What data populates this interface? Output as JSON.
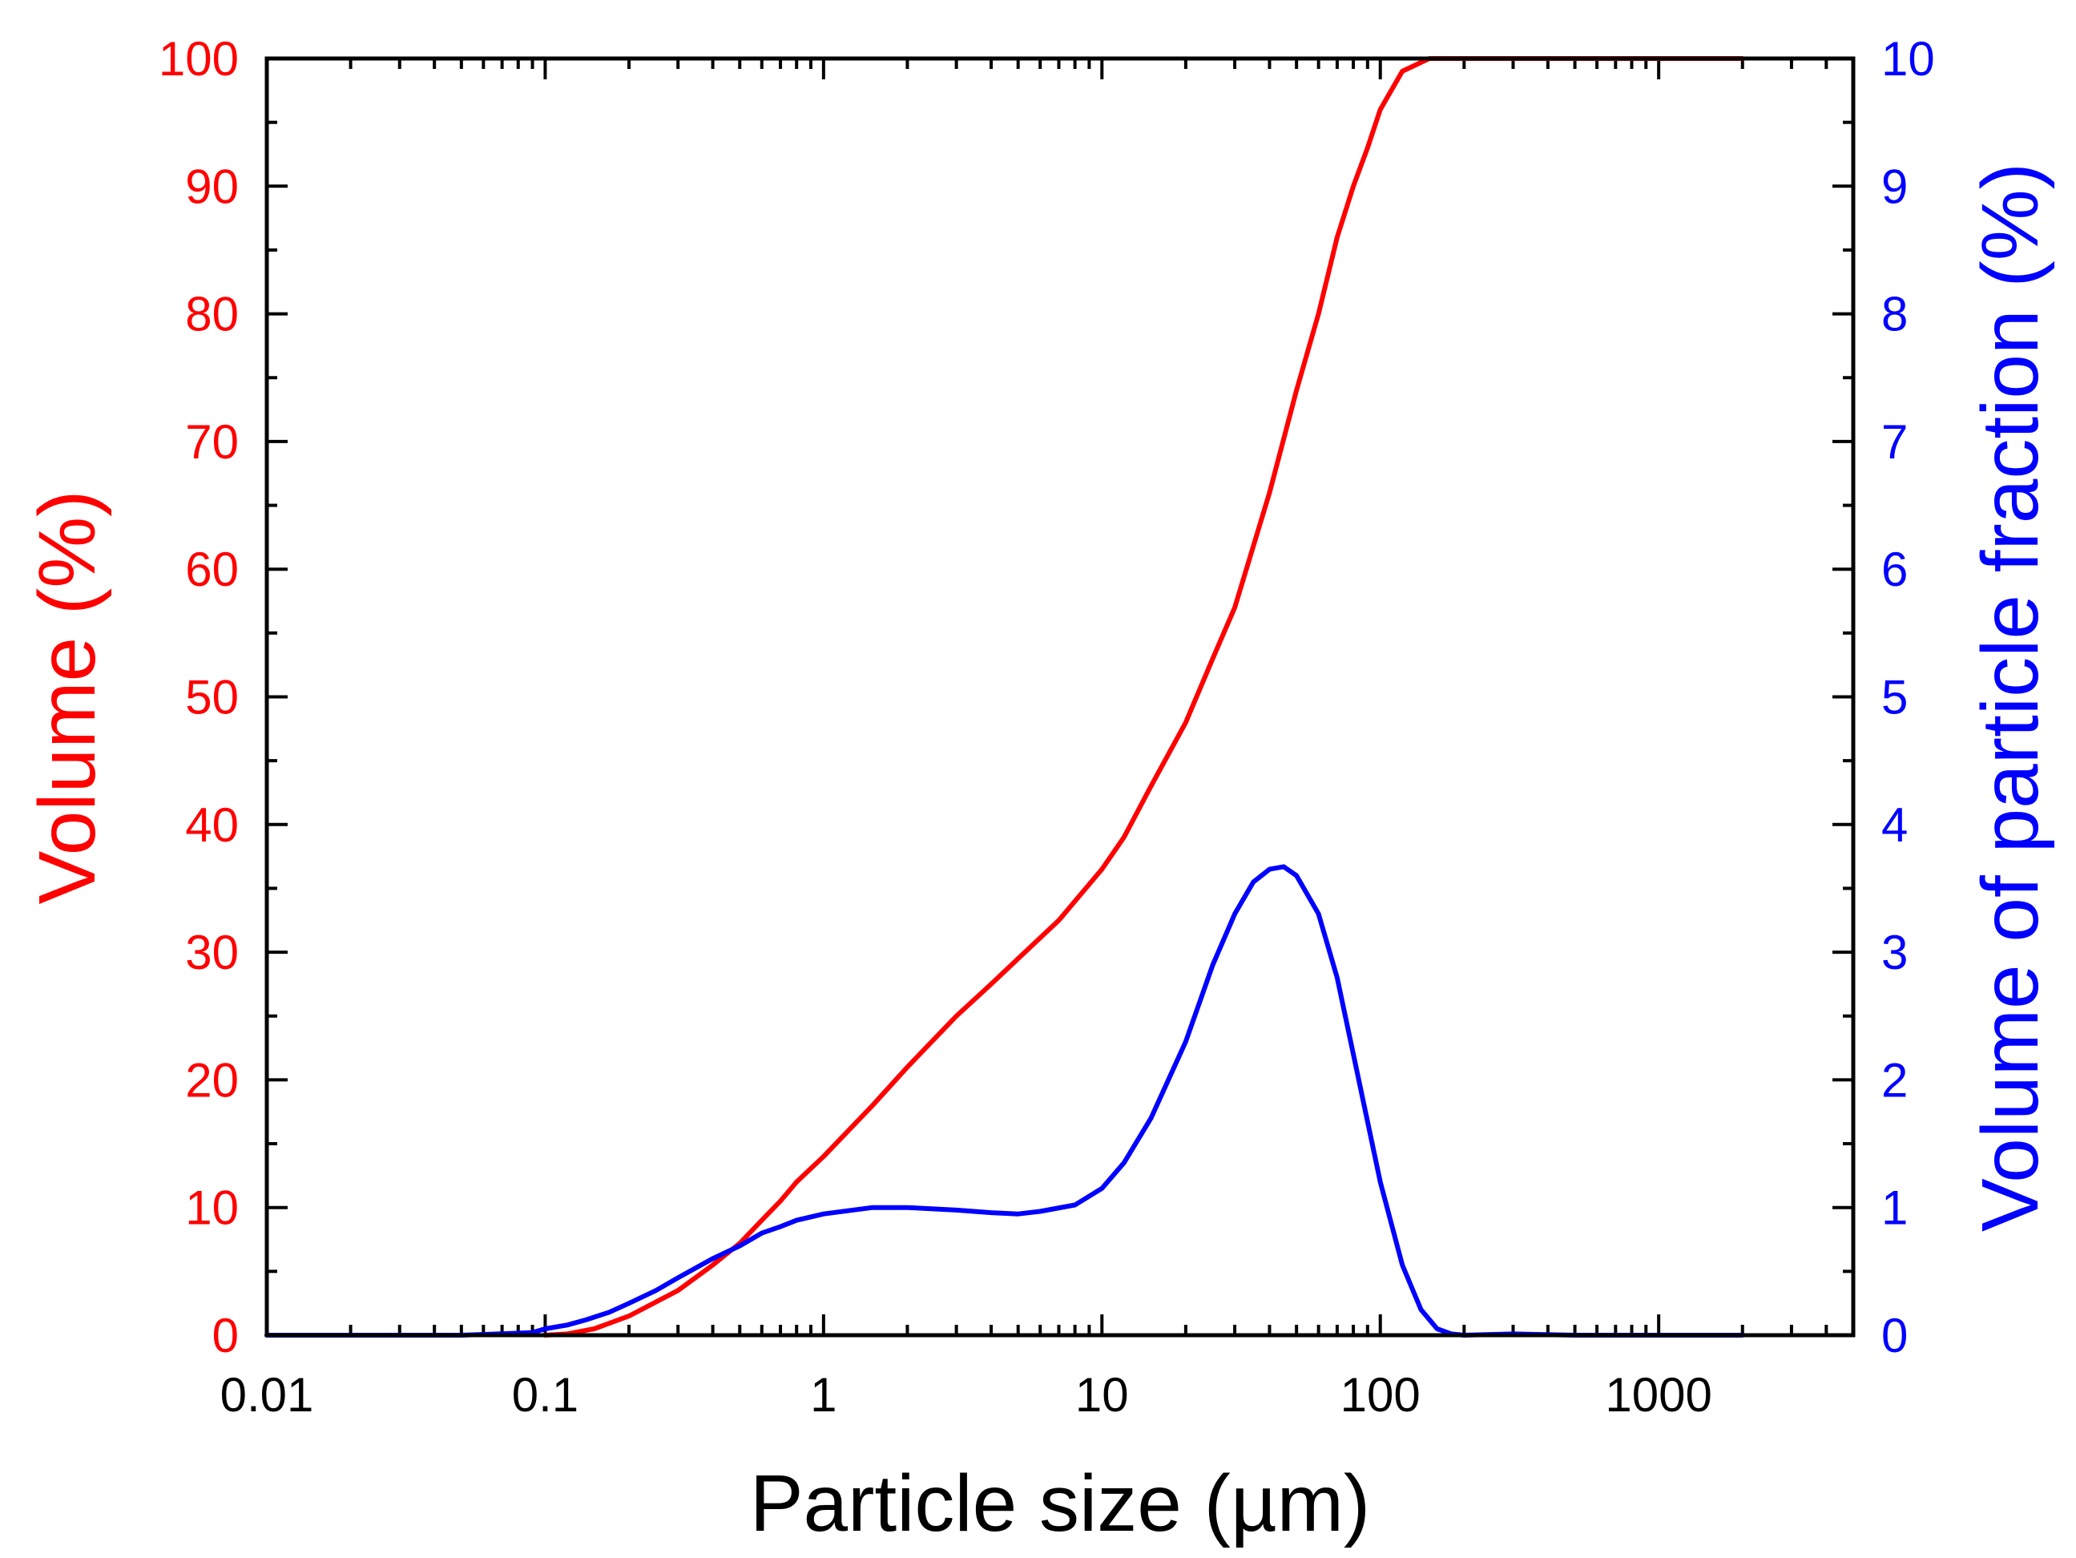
{
  "chart_data": {
    "type": "line",
    "title": "",
    "xlabel": "Particle size (µm)",
    "ylabel": "Volume (%)",
    "y2label": "Volume of particle fraction (%)",
    "xscale": "log",
    "xlim": [
      0.01,
      5000
    ],
    "ylim": [
      0,
      100
    ],
    "y2lim": [
      0,
      10
    ],
    "grid": false,
    "legend": "none",
    "x_tick_labels": [
      "0.01",
      "0.1",
      "1",
      "10",
      "100",
      "1000"
    ],
    "y_tick_labels": [
      "0",
      "10",
      "20",
      "30",
      "40",
      "50",
      "60",
      "70",
      "80",
      "90",
      "100"
    ],
    "y2_tick_labels": [
      "0",
      "1",
      "2",
      "3",
      "4",
      "5",
      "6",
      "7",
      "8",
      "9",
      "10"
    ],
    "series": [
      {
        "name": "Volume (%)",
        "axis": "left",
        "color": "#ff0000",
        "x": [
          0.1,
          0.12,
          0.15,
          0.2,
          0.3,
          0.4,
          0.5,
          0.6,
          0.7,
          0.8,
          1.0,
          1.5,
          2,
          3,
          4,
          5,
          7,
          10,
          12,
          15,
          20,
          25,
          30,
          40,
          50,
          60,
          70,
          80,
          90,
          100,
          120,
          150,
          200,
          300,
          500,
          1000,
          2000
        ],
        "values": [
          0,
          0.1,
          0.5,
          1.5,
          3.5,
          5.5,
          7.2,
          9,
          10.5,
          12,
          14,
          18,
          21,
          25,
          27.5,
          29.5,
          32.5,
          36.5,
          39,
          43,
          48,
          53,
          57,
          66,
          74,
          80,
          86,
          90,
          93,
          96,
          99,
          100,
          100,
          100,
          100,
          100,
          100
        ]
      },
      {
        "name": "Volume of particle fraction (%)",
        "axis": "right",
        "color": "#0000ff",
        "x": [
          0.01,
          0.05,
          0.09,
          0.1,
          0.12,
          0.14,
          0.17,
          0.2,
          0.25,
          0.3,
          0.4,
          0.5,
          0.6,
          0.7,
          0.8,
          1.0,
          1.5,
          2,
          3,
          4,
          5,
          6,
          8,
          10,
          12,
          15,
          20,
          25,
          30,
          35,
          40,
          45,
          50,
          60,
          70,
          80,
          100,
          120,
          140,
          160,
          180,
          200,
          300,
          500,
          1000,
          2000
        ],
        "values": [
          0,
          0,
          0.02,
          0.05,
          0.08,
          0.12,
          0.18,
          0.25,
          0.35,
          0.45,
          0.6,
          0.7,
          0.8,
          0.85,
          0.9,
          0.95,
          1.0,
          1.0,
          0.98,
          0.96,
          0.95,
          0.97,
          1.02,
          1.15,
          1.35,
          1.7,
          2.3,
          2.9,
          3.3,
          3.55,
          3.65,
          3.67,
          3.6,
          3.3,
          2.8,
          2.2,
          1.2,
          0.55,
          0.2,
          0.05,
          0.01,
          0,
          0.01,
          0,
          0,
          0
        ]
      }
    ]
  }
}
